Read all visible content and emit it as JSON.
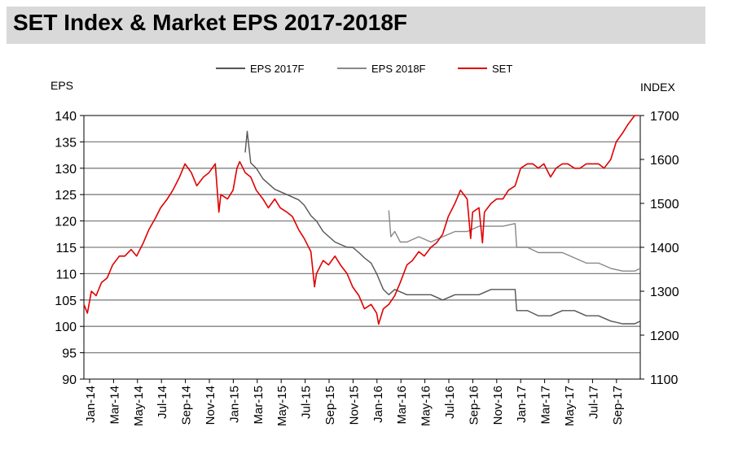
{
  "page": {
    "title": "SET Index & Market EPS 2017-2018F"
  },
  "colors": {
    "title_bar": "#d9d9d9",
    "eps2017": "#555555",
    "eps2018": "#888888",
    "set": "#e00000",
    "grid": "#808080"
  },
  "chart_data": {
    "type": "line",
    "title": "SET Index & Market EPS 2017-2018F",
    "y_left_label": "EPS",
    "y_right_label": "INDEX",
    "y_left_range": [
      90,
      140
    ],
    "y_right_range": [
      1100,
      1700
    ],
    "y_left_ticks": [
      "140",
      "135",
      "130",
      "125",
      "120",
      "115",
      "110",
      "105",
      "100",
      "95",
      "90"
    ],
    "y_right_ticks": [
      "1700",
      "1600",
      "1500",
      "1400",
      "1300",
      "1200",
      "1100"
    ],
    "x_ticks": [
      "Jan-14",
      "Mar-14",
      "May-14",
      "Jul-14",
      "Sep-14",
      "Nov-14",
      "Jan-15",
      "Mar-15",
      "May-15",
      "Jul-15",
      "Sep-15",
      "Nov-15",
      "Jan-16",
      "Mar-16",
      "May-16",
      "Jul-16",
      "Sep-16",
      "Nov-16",
      "Jan-17",
      "Mar-17",
      "May-17",
      "Jul-17",
      "Sep-17"
    ],
    "x_range": [
      "2014-01-01",
      "2017-11-15"
    ],
    "grid": true,
    "legend_position": "top",
    "series": [
      {
        "name": "EPS 2017F",
        "axis": "left",
        "x": [
          "2015-02-15",
          "2015-02-20",
          "2015-03-01",
          "2015-03-15",
          "2015-04-01",
          "2015-05-01",
          "2015-06-01",
          "2015-07-01",
          "2015-07-15",
          "2015-08-01",
          "2015-08-15",
          "2015-09-01",
          "2015-10-01",
          "2015-11-01",
          "2015-11-15",
          "2015-12-01",
          "2015-12-15",
          "2016-01-01",
          "2016-01-15",
          "2016-02-01",
          "2016-02-15",
          "2016-03-01",
          "2016-04-01",
          "2016-05-01",
          "2016-06-01",
          "2016-07-01",
          "2016-08-01",
          "2016-09-01",
          "2016-10-01",
          "2016-11-01",
          "2016-12-01",
          "2017-01-01",
          "2017-01-05",
          "2017-02-01",
          "2017-03-01",
          "2017-04-01",
          "2017-05-01",
          "2017-06-01",
          "2017-07-01",
          "2017-08-01",
          "2017-09-01",
          "2017-10-01",
          "2017-11-01",
          "2017-11-15"
        ],
        "values": [
          133,
          137,
          131,
          130,
          128,
          126,
          125,
          124,
          123,
          121,
          120,
          118,
          116,
          115,
          115,
          114,
          113,
          112,
          110,
          107,
          106,
          107,
          106,
          106,
          106,
          105,
          106,
          106,
          106,
          107,
          107,
          107,
          103,
          103,
          102,
          102,
          103,
          103,
          102,
          102,
          101,
          100.5,
          100.5,
          101
        ]
      },
      {
        "name": "EPS 2018F",
        "axis": "left",
        "x": [
          "2016-02-15",
          "2016-02-20",
          "2016-03-01",
          "2016-03-15",
          "2016-04-01",
          "2016-05-01",
          "2016-06-01",
          "2016-07-01",
          "2016-08-01",
          "2016-09-01",
          "2016-10-01",
          "2016-11-01",
          "2016-12-01",
          "2017-01-01",
          "2017-01-05",
          "2017-02-01",
          "2017-03-01",
          "2017-04-01",
          "2017-05-01",
          "2017-06-01",
          "2017-07-01",
          "2017-08-01",
          "2017-09-01",
          "2017-10-01",
          "2017-11-01",
          "2017-11-15"
        ],
        "values": [
          122,
          117,
          118,
          116,
          116,
          117,
          116,
          117,
          118,
          118,
          119,
          119,
          119,
          119.5,
          115,
          115,
          114,
          114,
          114,
          113,
          112,
          112,
          111,
          110.5,
          110.5,
          111
        ]
      },
      {
        "name": "SET",
        "axis": "right",
        "x": [
          "2014-01-01",
          "2014-01-10",
          "2014-01-20",
          "2014-02-01",
          "2014-02-15",
          "2014-03-01",
          "2014-03-15",
          "2014-04-01",
          "2014-04-15",
          "2014-05-01",
          "2014-05-15",
          "2014-06-01",
          "2014-06-15",
          "2014-07-01",
          "2014-07-15",
          "2014-08-01",
          "2014-08-15",
          "2014-09-01",
          "2014-09-15",
          "2014-10-01",
          "2014-10-15",
          "2014-11-01",
          "2014-11-15",
          "2014-12-01",
          "2014-12-10",
          "2014-12-15",
          "2015-01-01",
          "2015-01-15",
          "2015-01-25",
          "2015-02-01",
          "2015-02-15",
          "2015-03-01",
          "2015-03-15",
          "2015-04-01",
          "2015-04-15",
          "2015-05-01",
          "2015-05-15",
          "2015-06-01",
          "2015-06-15",
          "2015-07-01",
          "2015-07-15",
          "2015-08-01",
          "2015-08-10",
          "2015-08-15",
          "2015-09-01",
          "2015-09-15",
          "2015-10-01",
          "2015-10-15",
          "2015-11-01",
          "2015-11-15",
          "2015-12-01",
          "2015-12-15",
          "2016-01-01",
          "2016-01-15",
          "2016-01-20",
          "2016-02-01",
          "2016-02-15",
          "2016-03-01",
          "2016-03-15",
          "2016-04-01",
          "2016-04-15",
          "2016-05-01",
          "2016-05-15",
          "2016-06-01",
          "2016-06-15",
          "2016-07-01",
          "2016-07-15",
          "2016-08-01",
          "2016-08-15",
          "2016-09-01",
          "2016-09-10",
          "2016-09-15",
          "2016-10-01",
          "2016-10-10",
          "2016-10-15",
          "2016-11-01",
          "2016-11-15",
          "2016-12-01",
          "2016-12-15",
          "2017-01-01",
          "2017-01-15",
          "2017-02-01",
          "2017-02-15",
          "2017-03-01",
          "2017-03-15",
          "2017-04-01",
          "2017-04-15",
          "2017-05-01",
          "2017-05-15",
          "2017-06-01",
          "2017-06-15",
          "2017-07-01",
          "2017-07-15",
          "2017-08-01",
          "2017-08-15",
          "2017-09-01",
          "2017-09-15",
          "2017-10-01",
          "2017-10-15",
          "2017-11-01",
          "2017-11-10"
        ],
        "values": [
          1270,
          1250,
          1300,
          1290,
          1320,
          1330,
          1360,
          1380,
          1380,
          1395,
          1380,
          1410,
          1440,
          1465,
          1490,
          1510,
          1530,
          1560,
          1590,
          1570,
          1540,
          1560,
          1570,
          1590,
          1480,
          1520,
          1510,
          1530,
          1580,
          1595,
          1570,
          1560,
          1530,
          1510,
          1490,
          1510,
          1490,
          1480,
          1470,
          1440,
          1420,
          1390,
          1310,
          1340,
          1370,
          1360,
          1380,
          1360,
          1340,
          1310,
          1290,
          1260,
          1270,
          1250,
          1225,
          1260,
          1270,
          1290,
          1320,
          1360,
          1370,
          1390,
          1380,
          1400,
          1410,
          1430,
          1470,
          1500,
          1530,
          1510,
          1420,
          1480,
          1490,
          1410,
          1480,
          1500,
          1510,
          1510,
          1530,
          1540,
          1580,
          1590,
          1590,
          1580,
          1590,
          1560,
          1580,
          1590,
          1590,
          1580,
          1580,
          1590,
          1590,
          1590,
          1580,
          1600,
          1640,
          1660,
          1680,
          1700,
          1700
        ]
      }
    ]
  }
}
